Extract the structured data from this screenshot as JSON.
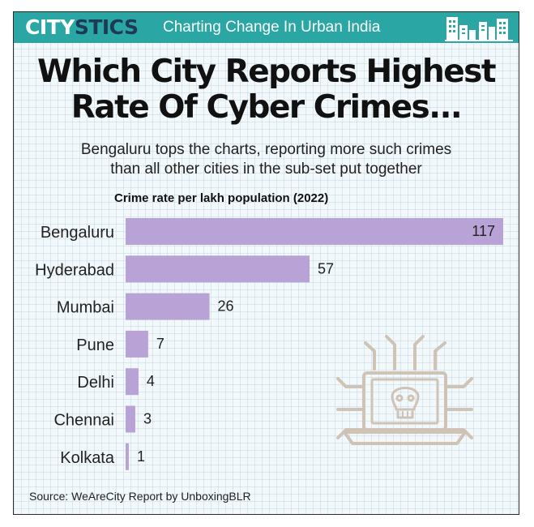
{
  "header": {
    "logo_part1": "CITY",
    "logo_part2": "STICS",
    "tagline": "Charting Change In Urban India",
    "skyline_icon": "city-skyline-icon"
  },
  "title_line1": "Which City Reports Highest",
  "title_line2": "Rate Of Cyber Crimes...",
  "subtitle_line1": "Bengaluru tops the charts, reporting more such crimes",
  "subtitle_line2": "than all other cities in the sub-set put together",
  "illustration_icon": "laptop-skull-circuit-icon",
  "source": "Source: WeAreCity Report by UnboxingBLR",
  "colors": {
    "banner": "#2aa7a5",
    "bar": "#b9a2d6",
    "logo_dark": "#1d3b55"
  },
  "chart_data": {
    "type": "bar",
    "orientation": "horizontal",
    "title": "Crime rate per lakh population (2022)",
    "categories": [
      "Bengaluru",
      "Hyderabad",
      "Mumbai",
      "Pune",
      "Delhi",
      "Chennai",
      "Kolkata"
    ],
    "values": [
      117,
      57,
      26,
      7,
      4,
      3,
      1
    ],
    "xlim": [
      0,
      117
    ],
    "grid": false,
    "legend": "none"
  }
}
